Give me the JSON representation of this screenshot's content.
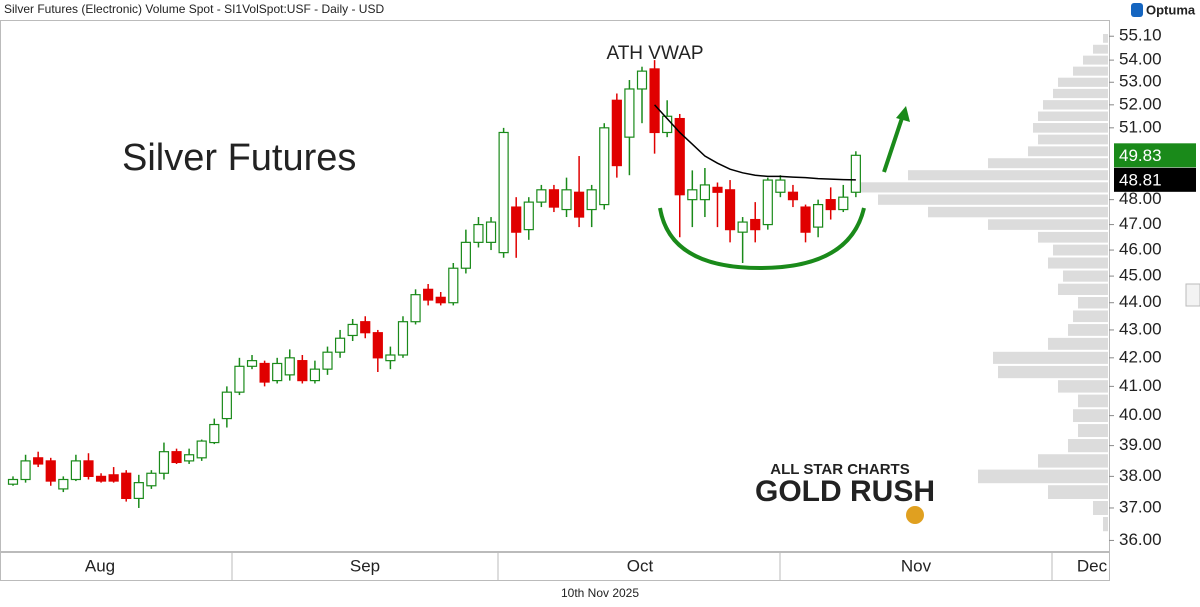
{
  "header": {
    "title": "Silver Futures (Electronic) Volume Spot - SI1VolSpot:USF - Daily - USD",
    "brand": "Optuma"
  },
  "footer": {
    "date": "10th Nov 2025"
  },
  "logo": {
    "line1": "ALL STAR CHARTS",
    "line2": "GOLD RUSH"
  },
  "chart_data": {
    "type": "candlestick",
    "title": "Silver Futures",
    "annotation": "ATH VWAP",
    "log_scale": true,
    "ylim": [
      35.65,
      55.86
    ],
    "yticks": [
      {
        "value": 36,
        "label": "36.00"
      },
      {
        "value": 37,
        "label": "37.00"
      },
      {
        "value": 38,
        "label": "38.00"
      },
      {
        "value": 39,
        "label": "39.00"
      },
      {
        "value": 40,
        "label": "40.00"
      },
      {
        "value": 41,
        "label": "41.00"
      },
      {
        "value": 42,
        "label": "42.00"
      },
      {
        "value": 43,
        "label": "43.00"
      },
      {
        "value": 44,
        "label": "44.00"
      },
      {
        "value": 45,
        "label": "45.00"
      },
      {
        "value": 46,
        "label": "46.00"
      },
      {
        "value": 47,
        "label": "47.00"
      },
      {
        "value": 48,
        "label": "48.00"
      },
      {
        "value": 51,
        "label": "51.00"
      },
      {
        "value": 52,
        "label": "52.00"
      },
      {
        "value": 53,
        "label": "53.00"
      },
      {
        "value": 54,
        "label": "54.00"
      },
      {
        "value": 55.1,
        "label": "55.10"
      }
    ],
    "months": [
      "Aug",
      "Sep",
      "Oct",
      "Nov",
      "Dec"
    ],
    "up_color": "#1a8a1a",
    "down_color": "#e00000",
    "vwap_color": "#000000",
    "profile_color": "#dcdcdc",
    "candles": {
      "open": [
        37.75,
        37.9,
        38.6,
        38.5,
        37.6,
        37.9,
        38.5,
        38.0,
        38.05,
        38.1,
        37.3,
        37.7,
        38.1,
        38.8,
        38.5,
        38.6,
        39.1,
        39.9,
        40.8,
        41.7,
        41.8,
        41.2,
        41.4,
        41.9,
        41.2,
        41.6,
        42.2,
        42.8,
        43.3,
        42.9,
        41.9,
        42.1,
        43.3,
        44.5,
        44.2,
        44.0,
        45.3,
        46.3,
        46.3,
        45.9,
        47.7,
        46.8,
        47.9,
        48.4,
        47.6,
        48.3,
        47.6,
        47.8,
        52.2,
        50.6,
        52.7,
        53.6,
        50.8,
        51.4,
        48.0,
        48.0,
        48.5,
        48.4,
        46.7,
        47.2,
        47.0,
        48.3,
        48.3,
        47.7,
        46.9,
        48.0,
        47.6,
        48.3
      ],
      "high": [
        38.0,
        38.7,
        38.8,
        38.6,
        38.0,
        38.7,
        38.75,
        38.1,
        38.3,
        38.2,
        38.05,
        38.2,
        39.1,
        38.9,
        38.9,
        39.2,
        39.9,
        41.0,
        42.0,
        42.1,
        41.9,
        42.0,
        42.3,
        42.1,
        41.9,
        42.4,
        43.0,
        43.4,
        43.5,
        43.0,
        42.4,
        43.5,
        44.5,
        44.7,
        44.4,
        45.5,
        46.8,
        47.3,
        47.3,
        51.0,
        48.1,
        48.1,
        48.6,
        48.6,
        48.9,
        49.8,
        48.6,
        51.2,
        52.5,
        53.1,
        53.7,
        54.0,
        52.2,
        51.6,
        49.2,
        49.3,
        48.7,
        48.8,
        47.3,
        47.9,
        48.9,
        49.0,
        48.6,
        47.8,
        48.0,
        48.5,
        48.6,
        50.0
      ],
      "low": [
        37.7,
        37.8,
        38.3,
        37.7,
        37.5,
        37.85,
        37.9,
        37.8,
        37.8,
        37.2,
        37.0,
        37.6,
        37.9,
        38.4,
        38.4,
        38.5,
        39.05,
        39.6,
        40.7,
        41.6,
        41.0,
        41.1,
        41.2,
        41.1,
        41.1,
        41.4,
        42.0,
        42.6,
        42.7,
        41.5,
        41.6,
        42.0,
        43.2,
        43.9,
        43.9,
        43.9,
        45.1,
        46.1,
        46.0,
        45.7,
        45.7,
        46.4,
        47.7,
        47.5,
        47.3,
        46.9,
        46.9,
        47.6,
        48.9,
        49.0,
        51.2,
        49.9,
        50.6,
        46.5,
        46.9,
        47.3,
        46.9,
        46.3,
        45.5,
        46.3,
        46.8,
        48.1,
        47.7,
        46.3,
        46.5,
        47.2,
        47.5,
        48.1
      ],
      "close": [
        37.9,
        38.5,
        38.4,
        37.85,
        37.9,
        38.5,
        38.0,
        37.85,
        37.85,
        37.3,
        37.8,
        38.1,
        38.8,
        38.45,
        38.7,
        39.15,
        39.7,
        40.8,
        41.7,
        41.9,
        41.15,
        41.8,
        42.0,
        41.2,
        41.6,
        42.2,
        42.7,
        43.2,
        42.9,
        42.0,
        42.1,
        43.3,
        44.3,
        44.1,
        44.0,
        45.3,
        46.3,
        47.0,
        47.1,
        50.8,
        46.7,
        47.9,
        48.4,
        47.7,
        48.4,
        47.3,
        48.4,
        51.0,
        49.4,
        52.7,
        53.5,
        50.8,
        51.5,
        48.2,
        48.4,
        48.6,
        48.3,
        46.8,
        47.1,
        46.8,
        48.8,
        48.8,
        48.0,
        46.7,
        47.8,
        47.6,
        48.1,
        49.83
      ]
    },
    "vwap": [
      null,
      null,
      null,
      null,
      null,
      null,
      null,
      null,
      null,
      null,
      null,
      null,
      null,
      null,
      null,
      null,
      null,
      null,
      null,
      null,
      null,
      null,
      null,
      null,
      null,
      null,
      null,
      null,
      null,
      null,
      null,
      null,
      null,
      null,
      null,
      null,
      null,
      null,
      null,
      null,
      null,
      null,
      null,
      null,
      null,
      null,
      null,
      null,
      null,
      null,
      null,
      52.0,
      51.4,
      50.8,
      50.3,
      49.8,
      49.5,
      49.25,
      49.1,
      49.0,
      48.95,
      48.95,
      48.92,
      48.9,
      48.86,
      48.84,
      48.82,
      48.81
    ],
    "markers": [
      {
        "value": 49.83,
        "label": "49.83",
        "color": "#1a8a1a"
      },
      {
        "value": 48.81,
        "label": "48.81",
        "color": "#000000"
      }
    ],
    "volume_profile": {
      "prices": [
        36.5,
        37,
        37.5,
        38,
        38.5,
        39,
        39.5,
        40,
        40.5,
        41,
        41.5,
        42,
        42.5,
        43,
        43.5,
        44,
        44.5,
        45,
        45.5,
        46,
        46.5,
        47,
        47.5,
        48,
        48.5,
        49,
        49.5,
        50,
        50.5,
        51,
        51.5,
        52,
        52.5,
        53,
        53.5,
        54,
        54.5,
        55
      ],
      "values": [
        5,
        15,
        60,
        130,
        70,
        40,
        30,
        35,
        30,
        50,
        110,
        115,
        60,
        40,
        35,
        30,
        50,
        45,
        60,
        55,
        70,
        120,
        180,
        230,
        250,
        200,
        120,
        80,
        70,
        75,
        70,
        65,
        55,
        50,
        35,
        25,
        15,
        5
      ]
    }
  }
}
